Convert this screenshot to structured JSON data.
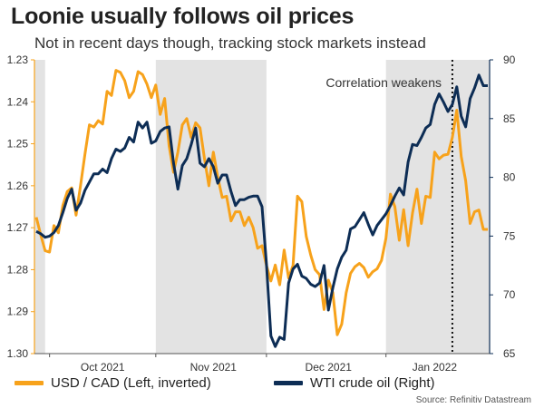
{
  "title": "Loonie usually follows oil prices",
  "subtitle": "Not in recent days though, tracking stock markets instead",
  "source": "Source: Refinitiv Datastream",
  "colors": {
    "usdcad": "#f7a21b",
    "wti": "#0d2d55",
    "band": "#e3e3e3",
    "left_axis": "#f7a21b",
    "right_axis": "#0d2d55"
  },
  "chart_data": {
    "type": "line",
    "title": "Loonie usually follows oil prices",
    "x_tick_labels": [
      "Oct 2021",
      "Nov 2021",
      "Dec 2021",
      "Jan 2022"
    ],
    "y_left": {
      "label": "USD / CAD (Left, inverted)",
      "range": [
        1.3,
        1.23
      ],
      "inverted": true,
      "ticks": [
        "1.23",
        "1.24",
        "1.25",
        "1.26",
        "1.27",
        "1.28",
        "1.29",
        "1.30"
      ]
    },
    "y_right": {
      "label": "WTI crude oil (Right)",
      "range": [
        65,
        90
      ],
      "ticks": [
        "90",
        "85",
        "80",
        "75",
        "70",
        "65"
      ]
    },
    "annotation": "Correlation weakens",
    "series": [
      {
        "name": "USD / CAD (Left, inverted)",
        "axis": "left",
        "values": [
          1.2675,
          1.2717,
          1.2755,
          1.2758,
          1.2695,
          1.2712,
          1.2647,
          1.2614,
          1.2605,
          1.267,
          1.26,
          1.2525,
          1.2455,
          1.246,
          1.2445,
          1.2453,
          1.2375,
          1.2385,
          1.2325,
          1.233,
          1.235,
          1.239,
          1.2375,
          1.2328,
          1.2335,
          1.2358,
          1.239,
          1.236,
          1.243,
          1.2392,
          1.2505,
          1.2568,
          1.252,
          1.2455,
          1.244,
          1.2485,
          1.245,
          1.2462,
          1.2535,
          1.26,
          1.252,
          1.258,
          1.2628,
          1.2625,
          1.2684,
          1.2662,
          1.2662,
          1.2695,
          1.2675,
          1.27,
          1.2749,
          1.2743,
          1.279,
          1.2827,
          1.2789,
          1.2836,
          1.2753,
          1.282,
          1.279,
          1.2625,
          1.2638,
          1.2721,
          1.2765,
          1.28,
          1.2812,
          1.2895,
          1.2825,
          1.2855,
          1.2955,
          1.293,
          1.2855,
          1.2809,
          1.2793,
          1.2785,
          1.2795,
          1.2818,
          1.2805,
          1.2798,
          1.2778,
          1.2725,
          1.262,
          1.265,
          1.273,
          1.2657,
          1.2743,
          1.2665,
          1.2608,
          1.269,
          1.2625,
          1.2628,
          1.252,
          1.2536,
          1.2527,
          1.2525,
          1.2485,
          1.242,
          1.253,
          1.2588,
          1.269,
          1.2662,
          1.2658,
          1.2704,
          1.2704
        ]
      },
      {
        "name": "WTI crude oil (Right)",
        "axis": "right",
        "values": [
          75.4,
          75.2,
          74.9,
          75.0,
          75.3,
          75.9,
          77.0,
          78.2,
          79.0,
          77.2,
          77.8,
          78.9,
          79.6,
          80.3,
          80.3,
          80.7,
          80.4,
          81.6,
          82.4,
          82.2,
          82.5,
          83.4,
          83.0,
          84.7,
          84.2,
          84.7,
          82.9,
          83.1,
          83.9,
          84.2,
          84.3,
          81.2,
          79.0,
          81.0,
          81.6,
          82.8,
          84.2,
          81.2,
          80.9,
          81.6,
          80.9,
          79.5,
          80.2,
          80.2,
          78.8,
          77.6,
          78.1,
          78.1,
          78.3,
          78.4,
          78.4,
          77.5,
          72.6,
          66.5,
          65.6,
          66.4,
          66.2,
          71.0,
          72.2,
          72.6,
          71.6,
          71.4,
          70.9,
          70.7,
          71.0,
          72.5,
          68.7,
          70.6,
          72.2,
          73.2,
          73.8,
          75.6,
          75.8,
          76.4,
          77.0,
          76.0,
          75.1,
          75.9,
          76.4,
          76.9,
          77.6,
          78.4,
          79.1,
          78.5,
          81.3,
          82.8,
          82.7,
          83.4,
          84.2,
          84.5,
          86.2,
          87.1,
          86.4,
          85.6,
          86.2,
          87.7,
          85.2,
          84.3,
          86.7,
          87.6,
          88.7,
          87.8,
          87.8
        ]
      }
    ],
    "shaded_bands_index_ranges": [
      [
        0,
        2
      ],
      [
        27,
        52
      ],
      [
        79,
        102
      ]
    ],
    "vertical_marker_index": 94
  }
}
